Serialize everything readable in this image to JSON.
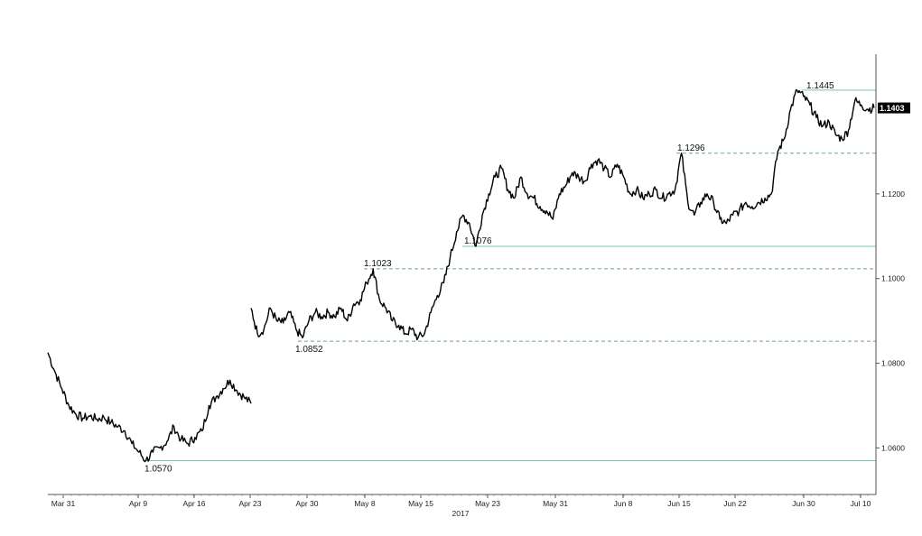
{
  "chart_data": {
    "type": "line",
    "title": "",
    "xlabel": "2017",
    "ylabel": "",
    "ylim": [
      1.049,
      1.153
    ],
    "x_ticks": [
      "Mar 31",
      "Apr 9",
      "Apr 16",
      "Apr 23",
      "Apr 30",
      "May 8",
      "May 15",
      "May 23",
      "May 31",
      "Jun 8",
      "Jun 15",
      "Jun 22",
      "Jun 30",
      "Jul 10"
    ],
    "y_ticks": [
      "1.0600",
      "1.0800",
      "1.1000",
      "1.1200"
    ],
    "last_value": "1.1403",
    "series": [
      {
        "values": [
          1.0825,
          1.078,
          1.074,
          1.07,
          1.068,
          1.067,
          1.0675,
          1.0668,
          1.0672,
          1.066,
          1.065,
          1.064,
          1.061,
          1.059,
          1.057,
          1.059,
          1.06,
          1.0615,
          1.065,
          1.062,
          1.061,
          1.0625,
          1.064,
          1.07,
          1.072,
          1.074,
          1.076,
          1.0735,
          1.072,
          1.0705,
          1.093,
          1.087,
          1.088,
          1.093,
          1.09,
          1.0895,
          1.092,
          1.088,
          1.086,
          1.09,
          1.092,
          1.091,
          1.092,
          1.091,
          1.093,
          1.09,
          1.094,
          1.095,
          1.099,
          1.1023,
          1.095,
          1.093,
          1.09,
          1.089,
          1.087,
          1.088,
          1.086,
          1.087,
          1.092,
          1.096,
          1.099,
          1.105,
          1.111,
          1.115,
          1.113,
          1.1076,
          1.115,
          1.12,
          1.124,
          1.126,
          1.121,
          1.119,
          1.124,
          1.12,
          1.119,
          1.117,
          1.116,
          1.114,
          1.12,
          1.122,
          1.125,
          1.124,
          1.123,
          1.127,
          1.128,
          1.126,
          1.124,
          1.127,
          1.124,
          1.12,
          1.121,
          1.119,
          1.12,
          1.121,
          1.119,
          1.12,
          1.121,
          1.1296,
          1.118,
          1.115,
          1.118,
          1.12,
          1.118,
          1.114,
          1.113,
          1.115,
          1.116,
          1.118,
          1.117,
          1.118,
          1.119,
          1.12,
          1.13,
          1.133,
          1.14,
          1.1445,
          1.143,
          1.141,
          1.138,
          1.136,
          1.137,
          1.134,
          1.133,
          1.135,
          1.142,
          1.141,
          1.14,
          1.1403
        ]
      }
    ],
    "reference_lines": [
      {
        "value": 1.1445,
        "label": "1.1445",
        "style": "solid",
        "color": "#7fc4b0"
      },
      {
        "value": 1.1296,
        "label": "1.1296",
        "style": "dashed",
        "color": "#6aa595"
      },
      {
        "value": 1.1076,
        "label": "1.1076",
        "style": "solid",
        "color": "#7fc4b0"
      },
      {
        "value": 1.1023,
        "label": "1.1023",
        "style": "dashed",
        "color": "#6aa595"
      },
      {
        "value": 1.0852,
        "label": "1.0852",
        "style": "dashed",
        "color": "#6aa595"
      },
      {
        "value": 1.057,
        "label": "1.0570",
        "style": "solid",
        "color": "#7fc4b0"
      }
    ],
    "grid": false,
    "colors": {
      "line": "#000000",
      "axis": "#555555",
      "last_badge": "#000000"
    }
  }
}
